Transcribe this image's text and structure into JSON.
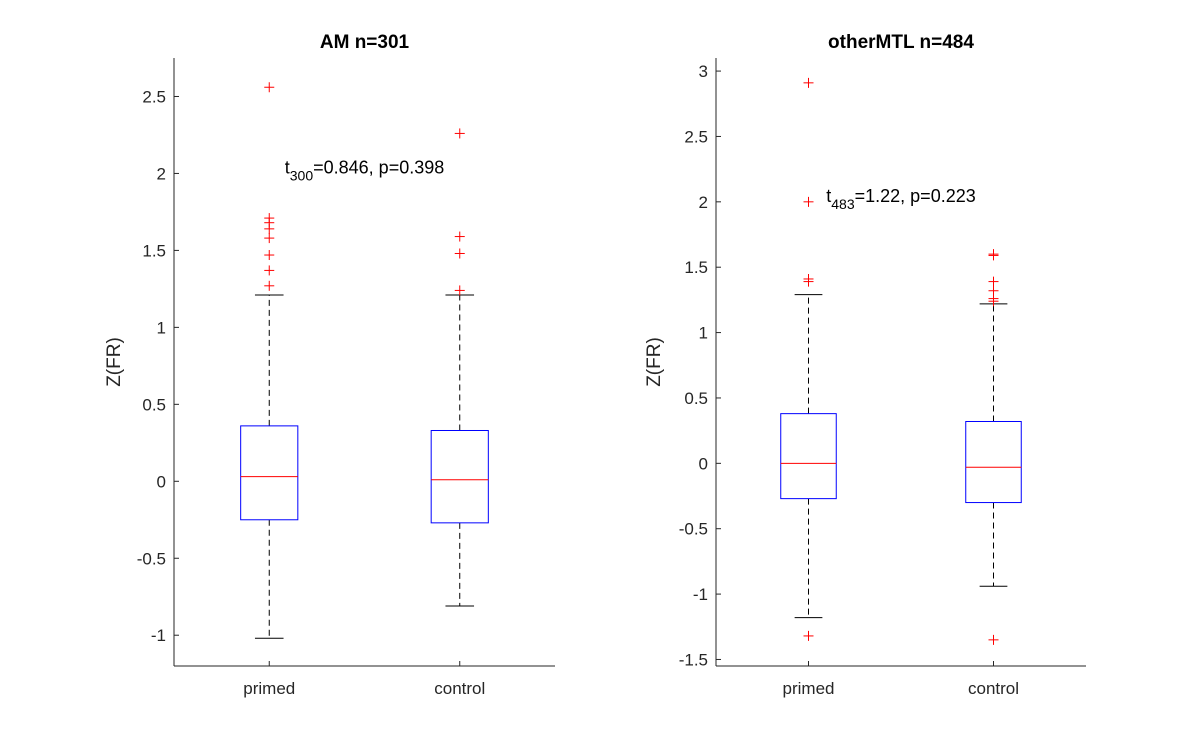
{
  "chart_data": [
    {
      "type": "box",
      "title": "AM n=301",
      "ylabel": "Z(FR)",
      "xlabel": "",
      "ylim": [
        -1.2,
        2.75
      ],
      "yticks": [
        "-1",
        "-0.5",
        "0",
        "0.5",
        "1",
        "1.5",
        "2",
        "2.5"
      ],
      "grid": false,
      "annotation": {
        "stat": "t",
        "df": "300",
        "rest": "=0.846, p=0.398",
        "x": 1.5,
        "y": 2.0
      },
      "boxes": [
        {
          "category": "primed",
          "whisker_low": -1.02,
          "q1": -0.25,
          "median": 0.03,
          "q3": 0.36,
          "whisker_high": 1.21,
          "outliers": [
            1.27,
            1.37,
            1.47,
            1.58,
            1.64,
            1.68,
            1.71,
            2.56
          ]
        },
        {
          "category": "control",
          "whisker_low": -0.81,
          "q1": -0.27,
          "median": 0.01,
          "q3": 0.33,
          "whisker_high": 1.21,
          "outliers": [
            1.24,
            1.48,
            1.59,
            2.26
          ]
        }
      ],
      "colors": {
        "box": "#0000ff",
        "median": "#ff0000",
        "whisker": "#000000",
        "outlier": "#ff0000"
      }
    },
    {
      "type": "box",
      "title": "otherMTL n=484",
      "ylabel": "Z(FR)",
      "xlabel": "",
      "ylim": [
        -1.55,
        3.1
      ],
      "yticks": [
        "-1.5",
        "-1",
        "-0.5",
        "0",
        "0.5",
        "1",
        "1.5",
        "2",
        "2.5",
        "3"
      ],
      "grid": false,
      "annotation": {
        "stat": "t",
        "df": "483",
        "rest": "=1.22, p=0.223",
        "x": 1.5,
        "y": 2.0
      },
      "boxes": [
        {
          "category": "primed",
          "whisker_low": -1.18,
          "q1": -0.27,
          "median": 0.0,
          "q3": 0.38,
          "whisker_high": 1.29,
          "outliers": [
            -1.32,
            1.39,
            1.41,
            2.0,
            2.91
          ]
        },
        {
          "category": "control",
          "whisker_low": -0.94,
          "q1": -0.3,
          "median": -0.03,
          "q3": 0.32,
          "whisker_high": 1.22,
          "outliers": [
            -1.35,
            1.24,
            1.26,
            1.32,
            1.39,
            1.59,
            1.6
          ]
        }
      ],
      "colors": {
        "box": "#0000ff",
        "median": "#ff0000",
        "whisker": "#000000",
        "outlier": "#ff0000"
      }
    }
  ]
}
